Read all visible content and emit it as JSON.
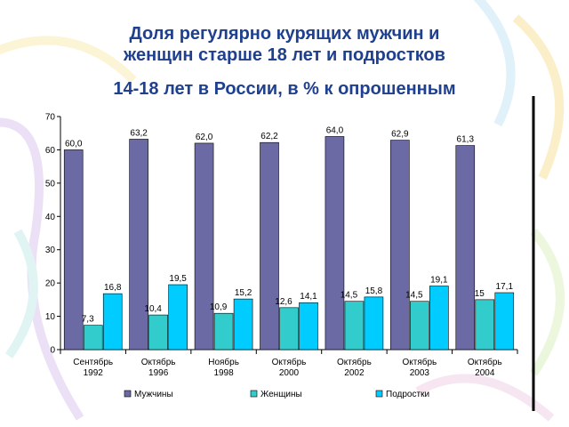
{
  "title": {
    "line1": "Доля регулярно курящих мужчин и",
    "line2": "женщин старше 18 лет и подростков",
    "line3": "14-18 лет в России, в % к опрошенным"
  },
  "chart_data": {
    "type": "bar",
    "categories": [
      [
        "Сентябрь",
        "1992"
      ],
      [
        "Октябрь",
        "1996"
      ],
      [
        "Ноябрь",
        "1998"
      ],
      [
        "Октябрь",
        "2000"
      ],
      [
        "Октябрь",
        "2002"
      ],
      [
        "Октябрь",
        "2003"
      ],
      [
        "Октябрь",
        "2004"
      ]
    ],
    "series": [
      {
        "name": "Мужчины",
        "color": "#6b6aa4",
        "values": [
          60.0,
          63.2,
          62.0,
          62.2,
          64.0,
          62.9,
          61.3
        ],
        "labels": [
          "60,0",
          "63,2",
          "62,0",
          "62,2",
          "64,0",
          "62,9",
          "61,3"
        ]
      },
      {
        "name": "Женщины",
        "color": "#33cccc",
        "values": [
          7.3,
          10.4,
          10.9,
          12.6,
          14.5,
          14.5,
          15
        ],
        "labels": [
          "7,3",
          "10,4",
          "10,9",
          "12,6",
          "14,5",
          "14,5",
          "15"
        ]
      },
      {
        "name": "Подростки",
        "color": "#00ccff",
        "values": [
          16.8,
          19.5,
          15.2,
          14.1,
          15.8,
          19.1,
          17.1
        ],
        "labels": [
          "16,8",
          "19,5",
          "15,2",
          "14,1",
          "15,8",
          "19,1",
          "17,1"
        ]
      }
    ],
    "yticks": [
      "0",
      "10",
      "20",
      "30",
      "40",
      "50",
      "60",
      "70"
    ],
    "ylim": [
      0,
      70
    ],
    "grid": false,
    "legend": "bottom"
  }
}
